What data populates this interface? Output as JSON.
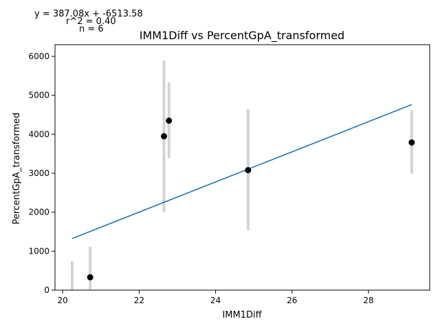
{
  "chart_data": {
    "type": "scatter",
    "title": "IMM1Diff vs PercentGpA_transformed",
    "xlabel": "IMM1Diff",
    "ylabel": "PercentGpA_transformed",
    "xlim": [
      19.8,
      29.6
    ],
    "ylim": [
      0,
      6300
    ],
    "xticks": [
      20,
      22,
      24,
      26,
      28
    ],
    "yticks": [
      0,
      1000,
      2000,
      3000,
      4000,
      5000,
      6000
    ],
    "grid": false,
    "annotations": {
      "equation": "y = 387.08x + -6513.58",
      "r2": "r^2 = 0.40",
      "n": "n = 6"
    },
    "points": [
      {
        "x": 20.72,
        "y": 330,
        "err_low": 0,
        "err_high": 1110
      },
      {
        "x": 22.65,
        "y": 3950,
        "err_low": 2000,
        "err_high": 5890
      },
      {
        "x": 22.78,
        "y": 4350,
        "err_low": 3390,
        "err_high": 5330
      },
      {
        "x": 24.85,
        "y": 3080,
        "err_low": 1540,
        "err_high": 4650
      },
      {
        "x": 29.13,
        "y": 3790,
        "err_low": 2990,
        "err_high": 4620
      }
    ],
    "extra_error_bars": [
      {
        "x": 20.25,
        "err_low": 0,
        "err_high": 750
      }
    ],
    "fit_line": {
      "slope": 387.08,
      "intercept": -6513.58,
      "x_range": [
        20.25,
        29.13
      ]
    },
    "colors": {
      "fit": "#1f77b4",
      "points": "#000000",
      "error_bars": "#d3d3d3"
    }
  }
}
